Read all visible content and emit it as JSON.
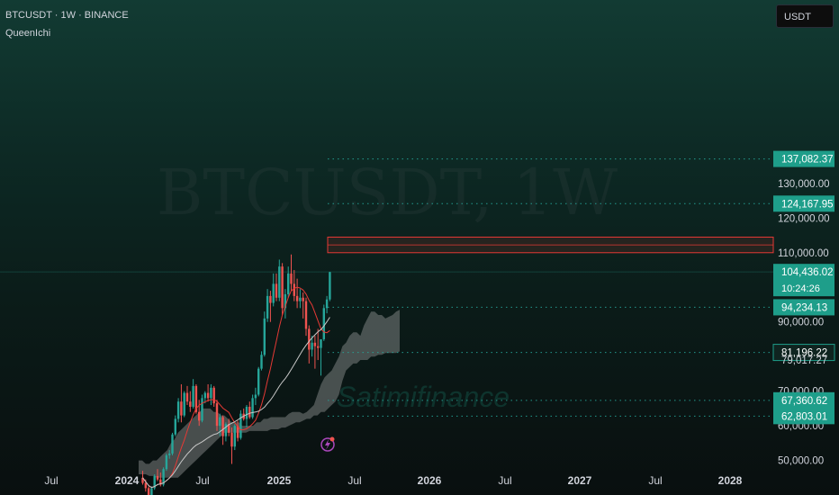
{
  "header": {
    "symbol_line": "BTCUSDT · 1W · BINANCE",
    "indicator": "QueenIchi"
  },
  "unit": "USDT",
  "watermarks": [
    "BTCUSDT, 1W",
    "Satimifinance"
  ],
  "colors": {
    "up": "#26a69a",
    "down": "#ef5350",
    "accent": "#1e9e8a",
    "cloud": "#bdbdbd",
    "zone": "#e53935",
    "dotted": "#26a69a"
  },
  "chart_data": {
    "type": "candlestick",
    "x_ticks": [
      "Jul",
      "2024",
      "Jul",
      "2025",
      "Jul",
      "2026",
      "Jul",
      "2027",
      "Jul",
      "2028"
    ],
    "y_ticks": [
      "130,000.00",
      "120,000.00",
      "110,000.00",
      "90,000.00",
      "70,000.00",
      "60,000.00",
      "50,000.00"
    ],
    "price_labels": [
      {
        "value": "137,082.37",
        "kind": "level"
      },
      {
        "value": "124,167.95",
        "kind": "level"
      },
      {
        "value": "104,436.02",
        "kind": "current",
        "time": "10:24:26"
      },
      {
        "value": "94,234.13",
        "kind": "level"
      },
      {
        "value": "81,196.22",
        "kind": "level-dark"
      },
      {
        "value": "79,017.27",
        "kind": "partial"
      },
      {
        "value": "67,360.62",
        "kind": "level"
      },
      {
        "value": "62,803.01",
        "kind": "level"
      }
    ],
    "resistance_zone": [
      110000,
      114500
    ],
    "candles": [
      [
        45000,
        47000,
        43000,
        43500
      ],
      [
        43500,
        44500,
        41000,
        42000
      ],
      [
        42000,
        42500,
        38500,
        39000
      ],
      [
        39000,
        42500,
        38500,
        42000
      ],
      [
        42000,
        46000,
        41500,
        45500
      ],
      [
        45500,
        47500,
        44000,
        44500
      ],
      [
        44500,
        46500,
        42500,
        43000
      ],
      [
        43000,
        48000,
        42500,
        47500
      ],
      [
        47500,
        52000,
        47000,
        51500
      ],
      [
        51500,
        53000,
        50500,
        52000
      ],
      [
        52000,
        58000,
        51500,
        57500
      ],
      [
        57500,
        63000,
        57000,
        62000
      ],
      [
        62000,
        68000,
        61000,
        67000
      ],
      [
        67000,
        72000,
        61000,
        63000
      ],
      [
        63000,
        70000,
        62500,
        69500
      ],
      [
        69500,
        71500,
        66000,
        67000
      ],
      [
        67000,
        70000,
        64000,
        65500
      ],
      [
        65500,
        73500,
        65000,
        71500
      ],
      [
        71500,
        72000,
        63500,
        64000
      ],
      [
        64000,
        67500,
        60000,
        61500
      ],
      [
        61500,
        69000,
        61000,
        68000
      ],
      [
        68000,
        70000,
        66500,
        69500
      ],
      [
        69500,
        72000,
        67000,
        68000
      ],
      [
        68000,
        72000,
        66000,
        71000
      ],
      [
        71000,
        71500,
        65500,
        66500
      ],
      [
        66500,
        67500,
        58500,
        60000
      ],
      [
        60000,
        63500,
        57000,
        62500
      ],
      [
        62500,
        63000,
        54500,
        57000
      ],
      [
        57000,
        61000,
        55500,
        60500
      ],
      [
        60500,
        62000,
        57000,
        58000
      ],
      [
        58000,
        59500,
        49000,
        54000
      ],
      [
        54000,
        60500,
        53000,
        60000
      ],
      [
        60000,
        61500,
        55500,
        56500
      ],
      [
        56500,
        64500,
        56000,
        63500
      ],
      [
        63500,
        65000,
        61500,
        62000
      ],
      [
        62000,
        66000,
        59500,
        65500
      ],
      [
        65500,
        67000,
        62000,
        62500
      ],
      [
        62500,
        69000,
        62000,
        68000
      ],
      [
        68000,
        71000,
        66000,
        69000
      ],
      [
        69000,
        77000,
        68500,
        76500
      ],
      [
        76500,
        81500,
        76000,
        80500
      ],
      [
        80500,
        93000,
        80000,
        91000
      ],
      [
        91000,
        99500,
        90000,
        97500
      ],
      [
        97500,
        99000,
        90000,
        95500
      ],
      [
        95500,
        104000,
        94500,
        101000
      ],
      [
        101000,
        104000,
        96000,
        97000
      ],
      [
        97000,
        108000,
        96000,
        106000
      ],
      [
        106000,
        107000,
        92000,
        94000
      ],
      [
        94000,
        99500,
        91000,
        98000
      ],
      [
        98000,
        106000,
        97000,
        104000
      ],
      [
        104000,
        109500,
        99000,
        101000
      ],
      [
        101000,
        105000,
        96000,
        97500
      ],
      [
        97500,
        102500,
        94000,
        96000
      ],
      [
        96000,
        99500,
        94000,
        97000
      ],
      [
        97000,
        98500,
        91000,
        96000
      ],
      [
        96000,
        97000,
        86000,
        88000
      ],
      [
        88000,
        89000,
        78000,
        82000
      ],
      [
        82000,
        86000,
        80000,
        84000
      ],
      [
        84000,
        86000,
        76500,
        83000
      ],
      [
        83000,
        88000,
        79000,
        82500
      ],
      [
        82500,
        85000,
        74500,
        85000
      ],
      [
        85000,
        95000,
        84500,
        94000
      ],
      [
        94000,
        97500,
        92500,
        96500
      ],
      [
        96500,
        104500,
        96000,
        104400
      ]
    ],
    "cloud_top": [
      50000,
      50000,
      49000,
      49000,
      50000,
      50000,
      51000,
      52000,
      53000,
      55000,
      56000,
      58000,
      59000,
      60000,
      61000,
      62000,
      63000,
      64000,
      65000,
      65000,
      65000,
      64000,
      64000,
      63000,
      63000,
      62000,
      61000,
      61000,
      61000,
      60000,
      60000,
      60000,
      60000,
      61000,
      61000,
      62000,
      62000,
      62500,
      62500,
      62500,
      62500,
      62500,
      63500,
      64000,
      64000,
      64000,
      63500,
      64000,
      65000,
      66000,
      69000,
      72000,
      74000,
      75000,
      76000,
      78000,
      80000,
      83000,
      84000,
      86000,
      87000,
      87000,
      86000,
      89000,
      91000,
      93000,
      93000,
      92000,
      92000,
      91000,
      91500,
      92000,
      93000,
      93500
    ],
    "cloud_bot": [
      46000,
      46000,
      46000,
      45500,
      45500,
      45000,
      45000,
      45000,
      45000,
      45000,
      45000,
      45000,
      46000,
      47000,
      48000,
      49000,
      50000,
      51000,
      52000,
      53000,
      54000,
      55000,
      56000,
      57000,
      58000,
      58000,
      58000,
      58000,
      58000,
      58000,
      58000,
      58500,
      58500,
      58500,
      58500,
      58500,
      58500,
      59000,
      59000,
      59000,
      59500,
      59500,
      60000,
      60500,
      61000,
      61000,
      61500,
      62000,
      62000,
      63000,
      63000,
      64000,
      64000,
      65000,
      66000,
      67000,
      69000,
      73000,
      76000,
      77000,
      78000,
      78000,
      79000,
      79000,
      79000,
      80000,
      80000,
      80500,
      80500,
      81000,
      81000,
      81000,
      81000,
      81500
    ]
  }
}
